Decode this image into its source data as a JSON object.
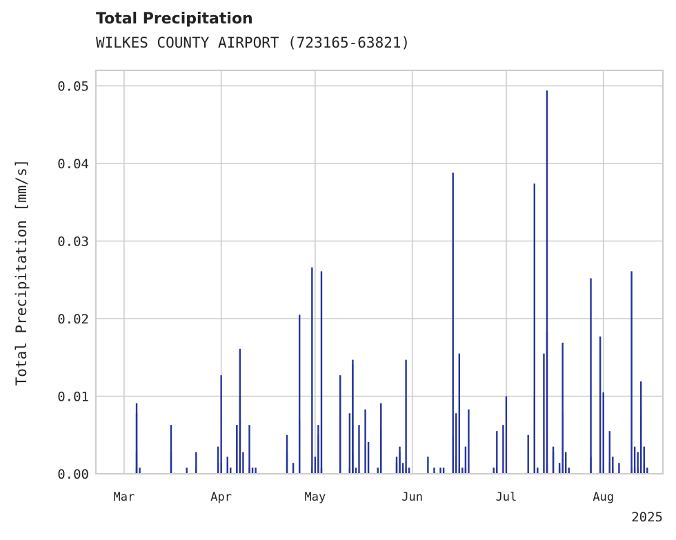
{
  "chart_data": {
    "type": "bar",
    "title": "Total Precipitation",
    "subtitle": "WILKES COUNTY AIRPORT (723165-63821)",
    "ylabel": "Total Precipitation [mm/s]",
    "xlabel": "",
    "year_label": "2025",
    "ylim": [
      0,
      0.052
    ],
    "xlim": [
      "2025-02-20",
      "2025-08-20"
    ],
    "grid": true,
    "y_ticks": [
      0.0,
      0.01,
      0.02,
      0.03,
      0.04,
      0.05
    ],
    "y_tick_labels": [
      "0.00",
      "0.01",
      "0.02",
      "0.03",
      "0.04",
      "0.05"
    ],
    "x_ticks": [
      {
        "date": "2025-03-01",
        "label": "Mar"
      },
      {
        "date": "2025-04-01",
        "label": "Apr"
      },
      {
        "date": "2025-05-01",
        "label": "May"
      },
      {
        "date": "2025-06-01",
        "label": "Jun"
      },
      {
        "date": "2025-07-01",
        "label": "Jul"
      },
      {
        "date": "2025-08-01",
        "label": "Aug"
      }
    ],
    "series": [
      {
        "color": "#25349a",
        "points": [
          [
            "2025-03-05",
            0.0008
          ],
          [
            "2025-03-05",
            0.0028
          ],
          [
            "2025-03-05",
            0.0091
          ],
          [
            "2025-03-05",
            0.0078
          ],
          [
            "2025-03-06",
            0.0008
          ],
          [
            "2025-03-16",
            0.0063
          ],
          [
            "2025-03-16",
            0.0028
          ],
          [
            "2025-03-21",
            0.0008
          ],
          [
            "2025-03-24",
            0.0028
          ],
          [
            "2025-03-24",
            0.0008
          ],
          [
            "2025-03-31",
            0.0014
          ],
          [
            "2025-03-31",
            0.0035
          ],
          [
            "2025-04-01",
            0.0127
          ],
          [
            "2025-04-01",
            0.0014
          ],
          [
            "2025-04-03",
            0.0022
          ],
          [
            "2025-04-03",
            0.0014
          ],
          [
            "2025-04-04",
            0.0008
          ],
          [
            "2025-04-06",
            0.0063
          ],
          [
            "2025-04-06",
            0.0063
          ],
          [
            "2025-04-07",
            0.0069
          ],
          [
            "2025-04-07",
            0.01
          ],
          [
            "2025-04-07",
            0.0161
          ],
          [
            "2025-04-08",
            0.0028
          ],
          [
            "2025-04-10",
            0.0063
          ],
          [
            "2025-04-10",
            0.0008
          ],
          [
            "2025-04-11",
            0.0008
          ],
          [
            "2025-04-12",
            0.0008
          ],
          [
            "2025-04-22",
            0.005
          ],
          [
            "2025-04-22",
            0.0028
          ],
          [
            "2025-04-24",
            0.0014
          ],
          [
            "2025-04-26",
            0.0069
          ],
          [
            "2025-04-26",
            0.0205
          ],
          [
            "2025-04-26",
            0.0008
          ],
          [
            "2025-04-30",
            0.0266
          ],
          [
            "2025-04-30",
            0.0008
          ],
          [
            "2025-05-01",
            0.0022
          ],
          [
            "2025-05-02",
            0.0063
          ],
          [
            "2025-05-02",
            0.005
          ],
          [
            "2025-05-03",
            0.0261
          ],
          [
            "2025-05-03",
            0.0008
          ],
          [
            "2025-05-09",
            0.0127
          ],
          [
            "2025-05-09",
            0.0105
          ],
          [
            "2025-05-09",
            0.0008
          ],
          [
            "2025-05-12",
            0.0008
          ],
          [
            "2025-05-12",
            0.0078
          ],
          [
            "2025-05-13",
            0.0141
          ],
          [
            "2025-05-13",
            0.0147
          ],
          [
            "2025-05-13",
            0.0063
          ],
          [
            "2025-05-13",
            0.0028
          ],
          [
            "2025-05-14",
            0.0008
          ],
          [
            "2025-05-15",
            0.0063
          ],
          [
            "2025-05-17",
            0.0083
          ],
          [
            "2025-05-18",
            0.0041
          ],
          [
            "2025-05-21",
            0.0008
          ],
          [
            "2025-05-22",
            0.0091
          ],
          [
            "2025-05-22",
            0.0058
          ],
          [
            "2025-05-27",
            0.0014
          ],
          [
            "2025-05-27",
            0.0022
          ],
          [
            "2025-05-28",
            0.0035
          ],
          [
            "2025-05-28",
            0.0028
          ],
          [
            "2025-05-29",
            0.0014
          ],
          [
            "2025-05-29",
            0.0008
          ],
          [
            "2025-05-30",
            0.0147
          ],
          [
            "2025-05-30",
            0.0008
          ],
          [
            "2025-05-31",
            0.0008
          ],
          [
            "2025-06-06",
            0.0022
          ],
          [
            "2025-06-08",
            0.0008
          ],
          [
            "2025-06-10",
            0.0008
          ],
          [
            "2025-06-11",
            0.0008
          ],
          [
            "2025-06-14",
            0.0388
          ],
          [
            "2025-06-14",
            0.005
          ],
          [
            "2025-06-15",
            0.0022
          ],
          [
            "2025-06-15",
            0.0078
          ],
          [
            "2025-06-16",
            0.0155
          ],
          [
            "2025-06-16",
            0.0008
          ],
          [
            "2025-06-17",
            0.0008
          ],
          [
            "2025-06-18",
            0.0035
          ],
          [
            "2025-06-18",
            0.0008
          ],
          [
            "2025-06-19",
            0.0083
          ],
          [
            "2025-06-27",
            0.0008
          ],
          [
            "2025-06-28",
            0.0055
          ],
          [
            "2025-06-28",
            0.0008
          ],
          [
            "2025-06-30",
            0.0063
          ],
          [
            "2025-07-01",
            0.01
          ],
          [
            "2025-07-08",
            0.005
          ],
          [
            "2025-07-10",
            0.0374
          ],
          [
            "2025-07-10",
            0.01
          ],
          [
            "2025-07-10",
            0.0063
          ],
          [
            "2025-07-11",
            0.0008
          ],
          [
            "2025-07-13",
            0.0155
          ],
          [
            "2025-07-14",
            0.0183
          ],
          [
            "2025-07-14",
            0.0494
          ],
          [
            "2025-07-14",
            0.0014
          ],
          [
            "2025-07-16",
            0.0028
          ],
          [
            "2025-07-16",
            0.0035
          ],
          [
            "2025-07-18",
            0.0008
          ],
          [
            "2025-07-18",
            0.0014
          ],
          [
            "2025-07-19",
            0.0078
          ],
          [
            "2025-07-19",
            0.0169
          ],
          [
            "2025-07-19",
            0.0008
          ],
          [
            "2025-07-20",
            0.0028
          ],
          [
            "2025-07-20",
            0.0008
          ],
          [
            "2025-07-21",
            0.0008
          ],
          [
            "2025-07-28",
            0.0252
          ],
          [
            "2025-07-28",
            0.0022
          ],
          [
            "2025-07-31",
            0.0177
          ],
          [
            "2025-07-31",
            0.0008
          ],
          [
            "2025-08-01",
            0.0105
          ],
          [
            "2025-08-01",
            0.0008
          ],
          [
            "2025-08-03",
            0.0055
          ],
          [
            "2025-08-03",
            0.0014
          ],
          [
            "2025-08-04",
            0.0008
          ],
          [
            "2025-08-04",
            0.0022
          ],
          [
            "2025-08-06",
            0.0014
          ],
          [
            "2025-08-10",
            0.0008
          ],
          [
            "2025-08-10",
            0.0261
          ],
          [
            "2025-08-11",
            0.0035
          ],
          [
            "2025-08-11",
            0.0008
          ],
          [
            "2025-08-12",
            0.0028
          ],
          [
            "2025-08-12",
            0.0008
          ],
          [
            "2025-08-13",
            0.0119
          ],
          [
            "2025-08-13",
            0.0083
          ],
          [
            "2025-08-13",
            0.0058
          ],
          [
            "2025-08-14",
            0.0035
          ],
          [
            "2025-08-14",
            0.0014
          ],
          [
            "2025-08-15",
            0.0008
          ]
        ]
      }
    ]
  }
}
